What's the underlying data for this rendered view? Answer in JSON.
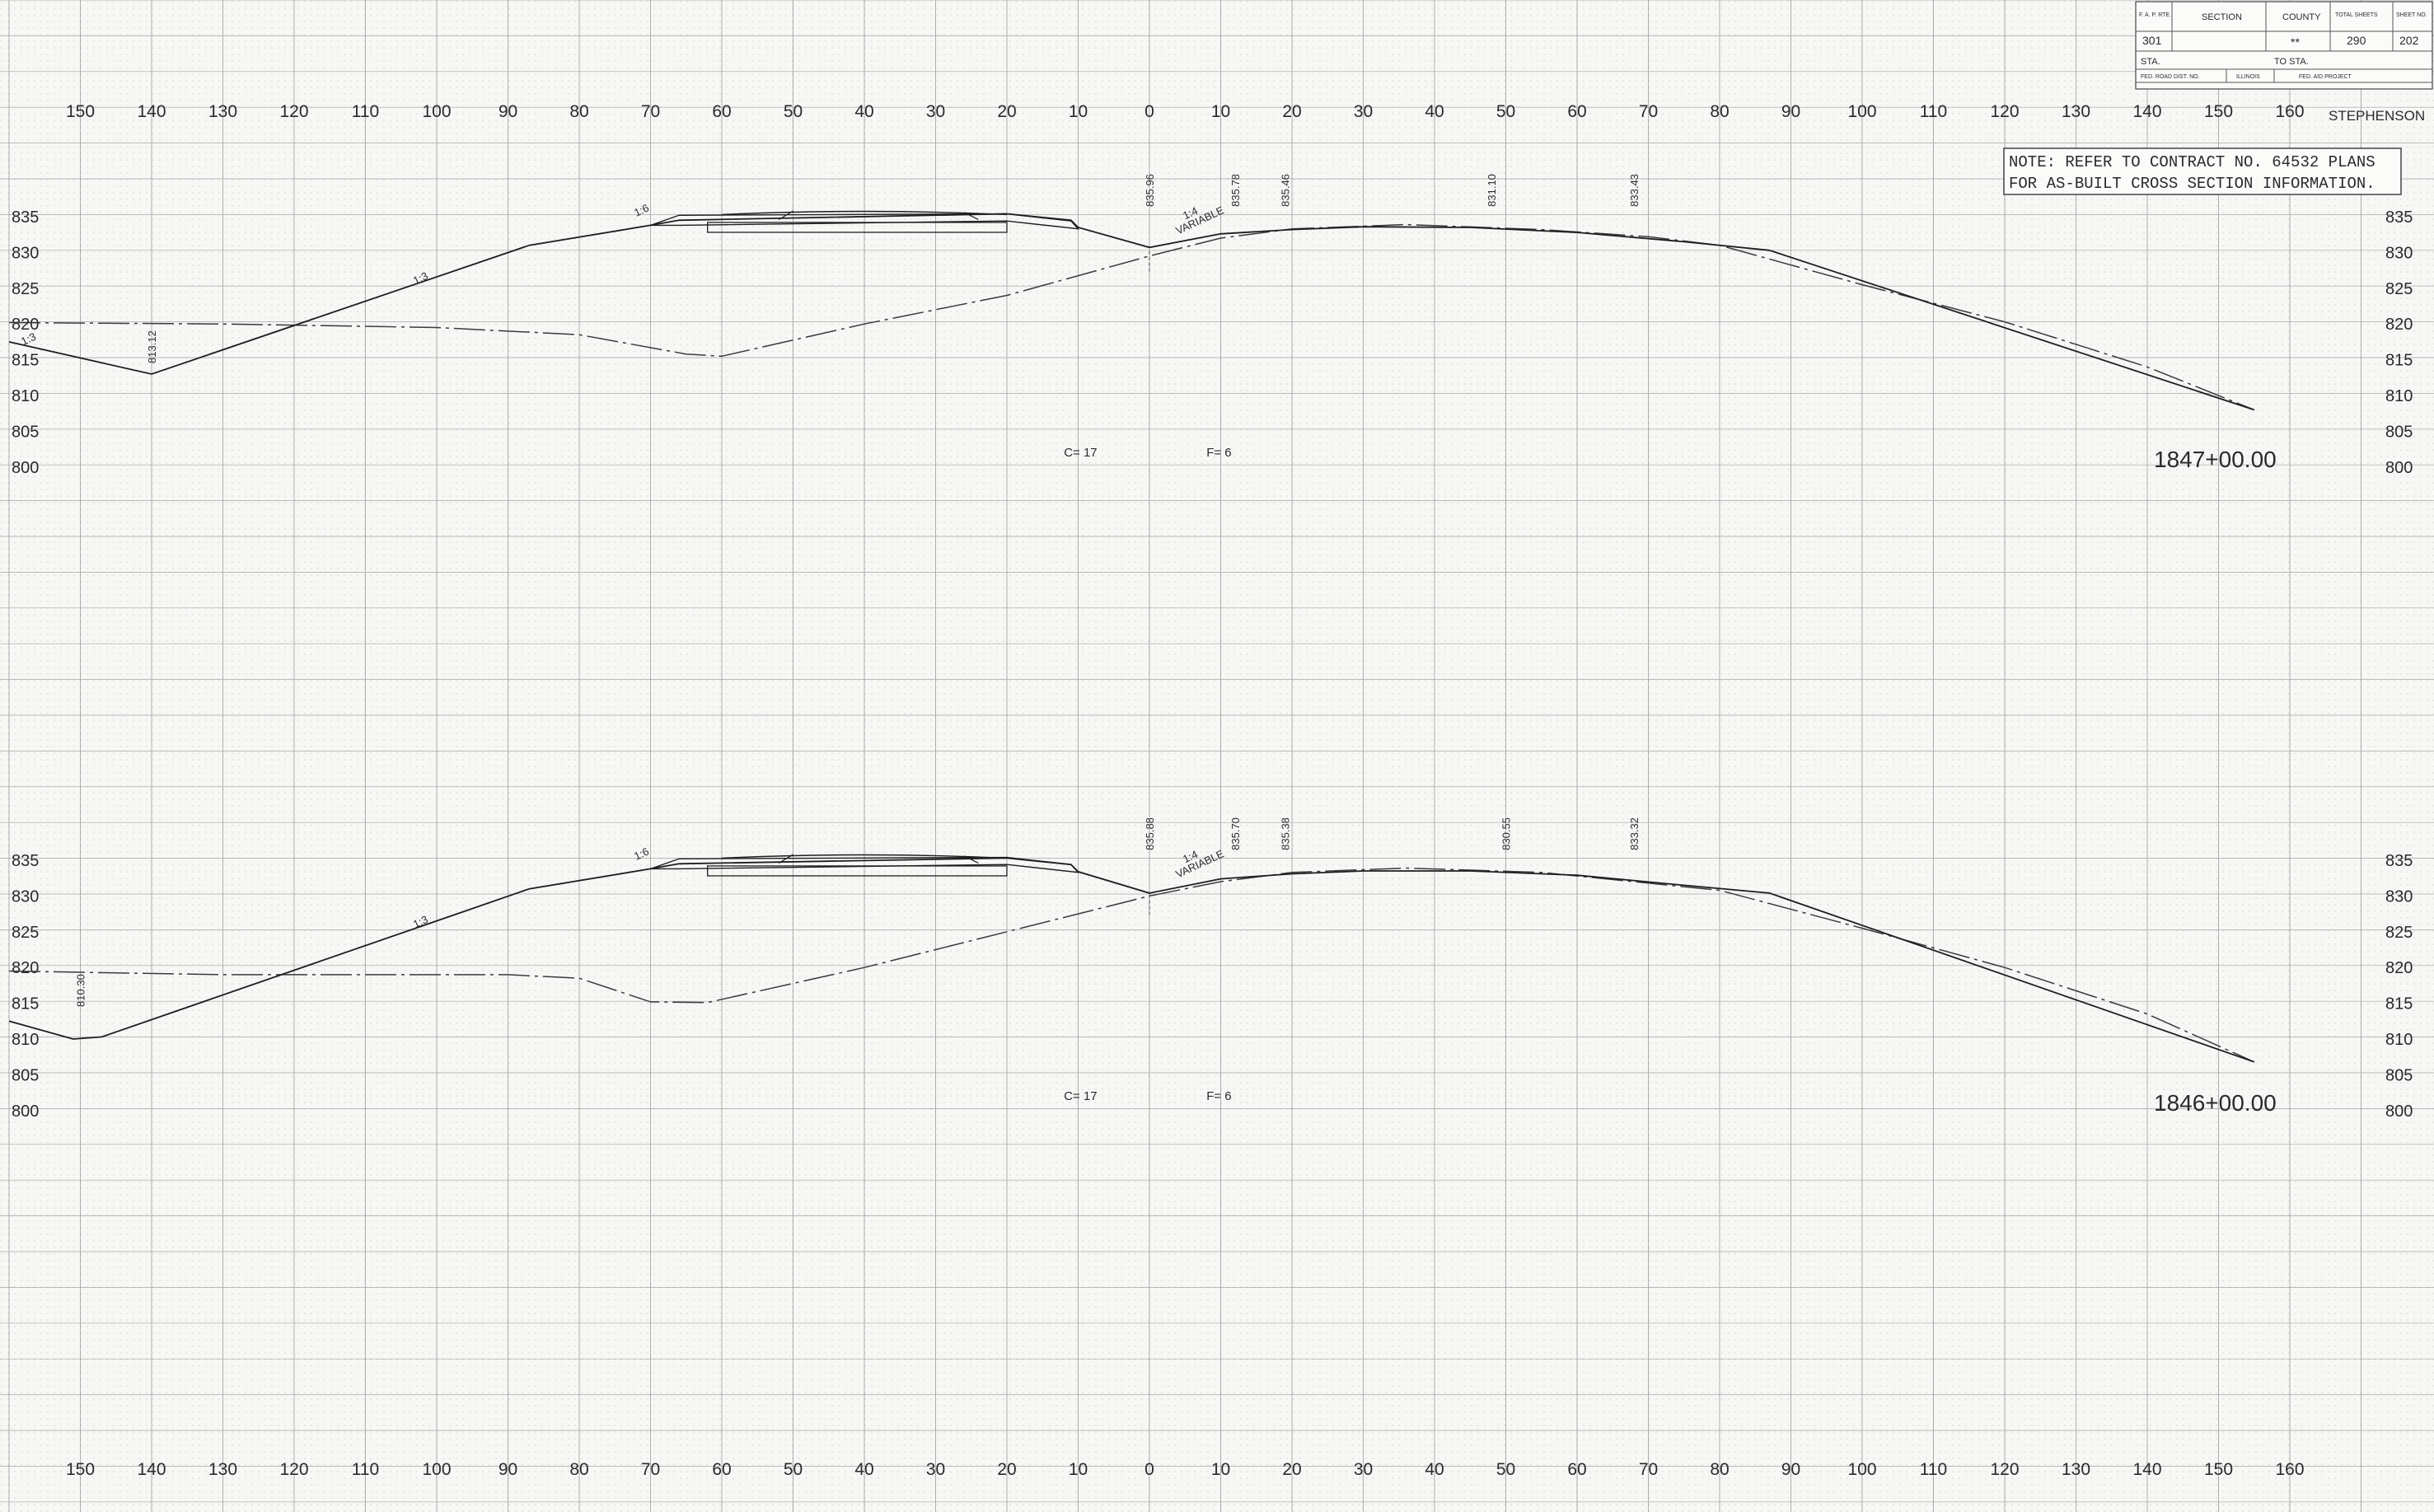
{
  "title_block": {
    "headers": [
      "F. A. P. RTE.",
      "SECTION",
      "COUNTY",
      "TOTAL SHEETS",
      "SHEET NO."
    ],
    "values": [
      "301",
      "",
      "**",
      "290",
      "202"
    ],
    "sta_label": "STA.",
    "to_sta_label": "TO STA.",
    "fed_road_dist": "FED. ROAD DIST. NO.",
    "state": "ILLINOIS",
    "fed_aid_project": "FED. AID PROJECT",
    "county_name": "STEPHENSON"
  },
  "note": {
    "line1": "NOTE:  REFER TO CONTRACT NO. 64532 PLANS",
    "line2": "FOR AS-BUILT CROSS SECTION INFORMATION."
  },
  "offset_labels": [
    "150",
    "140",
    "130",
    "120",
    "110",
    "100",
    "90",
    "80",
    "70",
    "60",
    "50",
    "40",
    "30",
    "20",
    "10",
    "0",
    "10",
    "20",
    "30",
    "40",
    "50",
    "60",
    "70",
    "80",
    "90",
    "100",
    "110",
    "120",
    "130",
    "140",
    "150",
    "160"
  ],
  "sections": [
    {
      "station": "1847+00.00",
      "elevation_labels": [
        "835",
        "830",
        "825",
        "820",
        "815",
        "810",
        "805",
        "800"
      ],
      "cut": "C= 17",
      "fill": "F= 6",
      "elevations": [
        {
          "text": "835.96",
          "offset": 0
        },
        {
          "text": "835.78",
          "offset": 12
        },
        {
          "text": "835.46",
          "offset": 19
        },
        {
          "text": "831.10",
          "offset": 48
        },
        {
          "text": "833.43",
          "offset": 68
        },
        {
          "text": "813.12",
          "offset": -140
        }
      ],
      "slopes": [
        {
          "text": "1:6",
          "offset": -68
        },
        {
          "text": "1:4",
          "offset": 9
        },
        {
          "text": "1:3",
          "offset": -100
        },
        {
          "text": "1:3",
          "offset": -158
        },
        {
          "text": "VARIABLE",
          "offset": 56
        }
      ],
      "design_profile": [
        [
          -160,
          817.5
        ],
        [
          -140,
          813
        ],
        [
          -87,
          831
        ],
        [
          -70,
          833.8
        ],
        [
          -66,
          834.5
        ],
        [
          -20,
          835.4
        ],
        [
          -11,
          834.5
        ],
        [
          -10,
          833.5
        ],
        [
          0,
          830.7
        ],
        [
          10,
          832.6
        ],
        [
          20,
          833.2
        ],
        [
          30,
          833.6
        ],
        [
          45,
          833.5
        ],
        [
          60,
          832.8
        ],
        [
          75,
          831.5
        ],
        [
          87,
          830.3
        ],
        [
          155,
          808
        ]
      ],
      "existing_ground": [
        [
          -160,
          820.2
        ],
        [
          -130,
          820
        ],
        [
          -100,
          819.5
        ],
        [
          -80,
          818.5
        ],
        [
          -65,
          815.8
        ],
        [
          -60,
          815.5
        ],
        [
          -40,
          820
        ],
        [
          -20,
          824
        ],
        [
          0,
          829.5
        ],
        [
          10,
          832
        ],
        [
          20,
          833.3
        ],
        [
          36,
          833.9
        ],
        [
          55,
          833.2
        ],
        [
          70,
          832.2
        ],
        [
          80,
          831
        ],
        [
          100,
          825.5
        ],
        [
          120,
          820.3
        ],
        [
          140,
          814
        ],
        [
          155,
          808
        ]
      ]
    },
    {
      "station": "1846+00.00",
      "elevation_labels": [
        "835",
        "830",
        "825",
        "820",
        "815",
        "810",
        "805",
        "800"
      ],
      "cut": "C= 17",
      "fill": "F= 6",
      "elevations": [
        {
          "text": "835.88",
          "offset": 0
        },
        {
          "text": "835.70",
          "offset": 12
        },
        {
          "text": "835.38",
          "offset": 19
        },
        {
          "text": "830.55",
          "offset": 50
        },
        {
          "text": "833.32",
          "offset": 68
        },
        {
          "text": "810.30",
          "offset": -150
        }
      ],
      "slopes": [
        {
          "text": "1:6",
          "offset": -68
        },
        {
          "text": "1:4",
          "offset": 9
        },
        {
          "text": "1:3",
          "offset": -100
        },
        {
          "text": "VARIABLE",
          "offset": 56
        }
      ],
      "design_profile": [
        [
          -160,
          812.5
        ],
        [
          -151,
          810
        ],
        [
          -147,
          810.3
        ],
        [
          -87,
          831
        ],
        [
          -70,
          833.8
        ],
        [
          -66,
          834.5
        ],
        [
          -20,
          835.3
        ],
        [
          -11,
          834.4
        ],
        [
          -10,
          833.4
        ],
        [
          0,
          830.4
        ],
        [
          10,
          832.4
        ],
        [
          20,
          833.1
        ],
        [
          30,
          833.5
        ],
        [
          45,
          833.5
        ],
        [
          60,
          832.9
        ],
        [
          75,
          831.5
        ],
        [
          87,
          830.4
        ],
        [
          155,
          806.8
        ]
      ],
      "existing_ground": [
        [
          -160,
          819.5
        ],
        [
          -130,
          819
        ],
        [
          -90,
          819
        ],
        [
          -80,
          818.5
        ],
        [
          -70,
          815.2
        ],
        [
          -62,
          815.1
        ],
        [
          -40,
          820
        ],
        [
          -20,
          825
        ],
        [
          0,
          830
        ],
        [
          10,
          832
        ],
        [
          20,
          833.3
        ],
        [
          36,
          833.9
        ],
        [
          55,
          833.3
        ],
        [
          70,
          831.8
        ],
        [
          80,
          830.8
        ],
        [
          100,
          825.5
        ],
        [
          120,
          820
        ],
        [
          140,
          813.5
        ],
        [
          155,
          806.8
        ]
      ]
    }
  ]
}
